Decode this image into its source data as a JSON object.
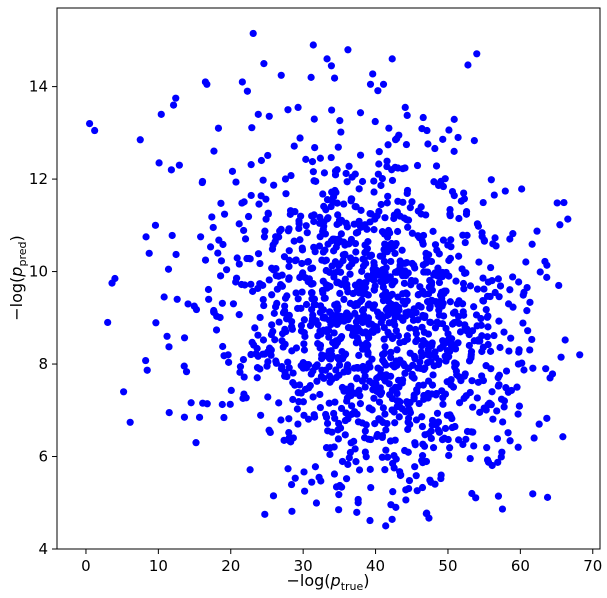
{
  "chart_data": {
    "type": "scatter",
    "title": "",
    "xlabel": {
      "main": "−log(",
      "var": "p",
      "sub": "true",
      "close": ")"
    },
    "ylabel": {
      "main": "−log(",
      "var": "p",
      "sub": "pred",
      "close": ")"
    },
    "xlim": [
      -4,
      71
    ],
    "ylim": [
      4,
      15.7
    ],
    "xticks": [
      0,
      10,
      20,
      30,
      40,
      50,
      60,
      70
    ],
    "yticks": [
      4,
      6,
      8,
      10,
      12,
      14
    ],
    "grid": false,
    "legend": "none",
    "marker_color": "#0000ff",
    "point_count": 1500,
    "points": [
      [
        0.5,
        13.2
      ],
      [
        1.2,
        13.05
      ],
      [
        3.0,
        8.9
      ],
      [
        3.6,
        9.75
      ],
      [
        4.0,
        9.85
      ],
      [
        5.2,
        7.4
      ],
      [
        7.5,
        12.85
      ],
      [
        8.3,
        10.75
      ],
      [
        9.6,
        11.0
      ],
      [
        10.1,
        12.35
      ],
      [
        10.4,
        13.4
      ],
      [
        10.8,
        9.45
      ],
      [
        11.2,
        8.6
      ],
      [
        11.4,
        10.05
      ],
      [
        11.5,
        6.95
      ],
      [
        11.8,
        12.2
      ],
      [
        12.1,
        13.6
      ],
      [
        12.4,
        13.75
      ],
      [
        12.6,
        9.4
      ],
      [
        12.9,
        12.3
      ],
      [
        13.6,
        6.85
      ],
      [
        14.1,
        9.3
      ],
      [
        15.2,
        6.3
      ],
      [
        16.5,
        14.1
      ],
      [
        16.7,
        14.05
      ],
      [
        18.3,
        13.1
      ],
      [
        21.6,
        14.1
      ],
      [
        22.3,
        13.9
      ],
      [
        23.1,
        15.15
      ],
      [
        23.8,
        13.4
      ],
      [
        24.7,
        4.75
      ],
      [
        25.9,
        5.15
      ],
      [
        27.9,
        13.5
      ],
      [
        29.3,
        13.55
      ],
      [
        30.2,
        5.25
      ],
      [
        31.1,
        14.2
      ],
      [
        31.4,
        14.9
      ],
      [
        32.2,
        5.55
      ],
      [
        33.3,
        14.6
      ],
      [
        33.9,
        14.45
      ],
      [
        34.9,
        4.85
      ],
      [
        37.6,
        5.0
      ],
      [
        39.3,
        14.05
      ],
      [
        41.1,
        14.05
      ],
      [
        41.4,
        4.5
      ],
      [
        42.3,
        14.6
      ],
      [
        42.8,
        4.9
      ],
      [
        44.1,
        13.55
      ],
      [
        47.1,
        13.05
      ],
      [
        51.4,
        12.9
      ],
      [
        53.3,
        5.2
      ],
      [
        56.2,
        10.6
      ],
      [
        59.7,
        6.2
      ],
      [
        60.5,
        9.55
      ],
      [
        61.9,
        6.4
      ],
      [
        62.6,
        6.7
      ],
      [
        63.5,
        7.9
      ],
      [
        64.1,
        7.7
      ],
      [
        65.3,
        9.7
      ],
      [
        68.2,
        8.2
      ]
    ]
  }
}
